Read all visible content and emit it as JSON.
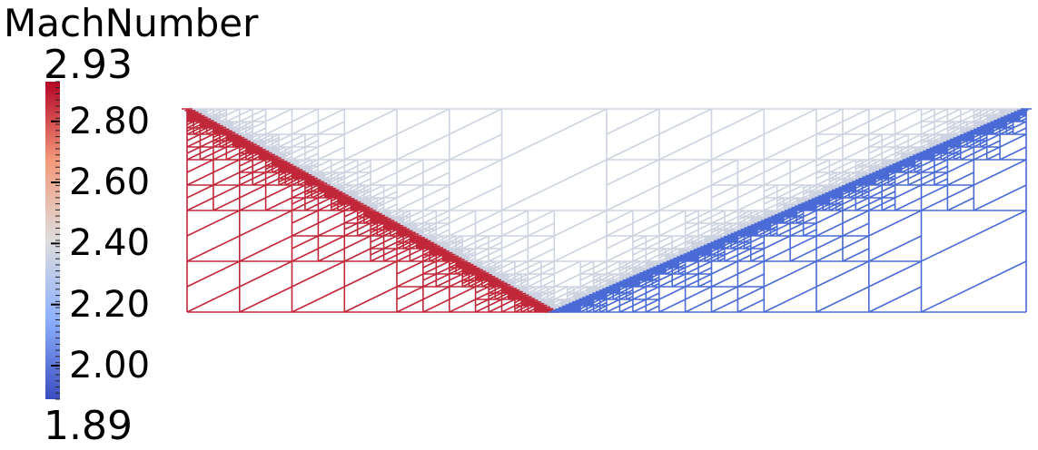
{
  "scalar_bar": {
    "title": "MachNumber",
    "range_max_label": "2.93",
    "range_min_label": "1.89",
    "range": [
      1.89,
      2.93
    ],
    "labels": [
      {
        "value": 2.8,
        "text": "2.80"
      },
      {
        "value": 2.6,
        "text": "2.60"
      },
      {
        "value": 2.4,
        "text": "2.40"
      },
      {
        "value": 2.2,
        "text": "2.20"
      },
      {
        "value": 2.0,
        "text": "2.00"
      }
    ],
    "minor_tick_step": 0.02,
    "colormap": "cool-to-warm",
    "colors": {
      "low": "#3b4cc0",
      "mid": "#dddddd",
      "high": "#b40426"
    }
  },
  "mesh": {
    "region_colors": {
      "pre_shock": "#c0283a",
      "post_reflection": "#4a6bd6",
      "middle": "#cdd3e0"
    }
  }
}
